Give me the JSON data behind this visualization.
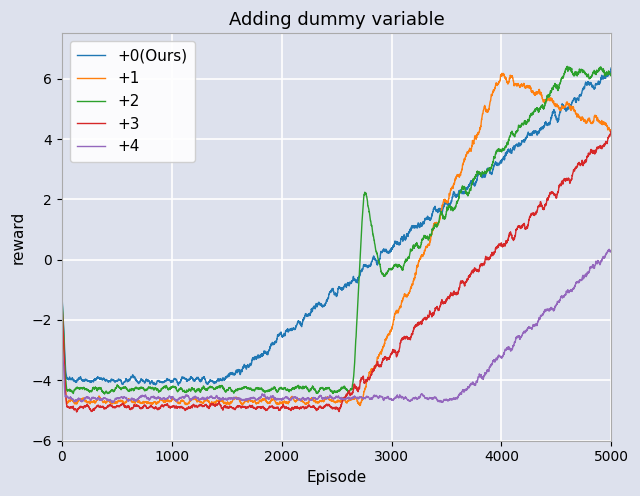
{
  "title": "Adding dummy variable",
  "xlabel": "Episode",
  "ylabel": "reward",
  "xlim": [
    0,
    5000
  ],
  "ylim": [
    -6,
    7.5
  ],
  "yticks": [
    -6,
    -4,
    -2,
    0,
    2,
    4,
    6
  ],
  "xticks": [
    0,
    1000,
    2000,
    3000,
    4000,
    5000
  ],
  "series": [
    {
      "label": "+0(Ours)",
      "color": "#1f77b4"
    },
    {
      "label": "+1",
      "color": "#ff7f0e"
    },
    {
      "label": "+2",
      "color": "#2ca02c"
    },
    {
      "label": "+3",
      "color": "#d62728"
    },
    {
      "label": "+4",
      "color": "#9467bd"
    }
  ],
  "n_points": 5000,
  "background_color": "#dde1ed",
  "grid_color": "white",
  "legend_fontsize": 11,
  "title_fontsize": 13,
  "axis_fontsize": 11
}
